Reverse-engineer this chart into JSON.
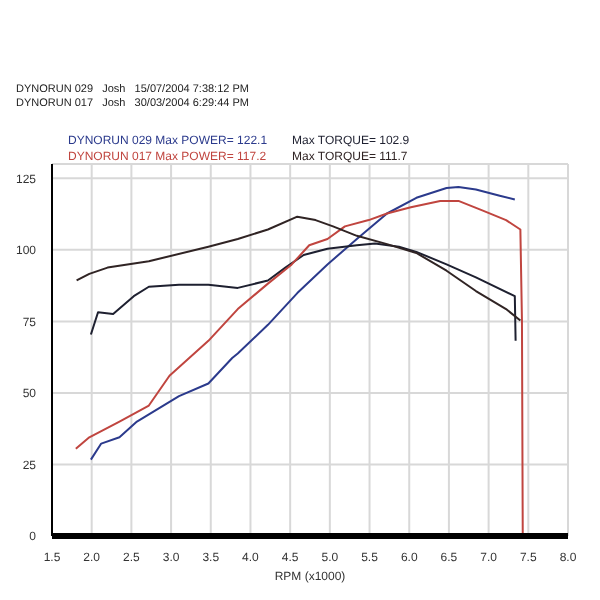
{
  "chart_data": {
    "type": "line",
    "xlabel": "RPM (x1000)",
    "annotations": [
      "DYNORUN 029   Josh   15/07/2004 7:38:12 PM",
      "DYNORUN 017   Josh   30/03/2004 6:29:44 PM"
    ],
    "xlim": [
      1.5,
      8.0
    ],
    "xticks": [
      {
        "value": 1.5,
        "label": "1.5"
      },
      {
        "value": 2,
        "label": "2.0"
      },
      {
        "value": 2.5,
        "label": "2.5"
      },
      {
        "value": 3,
        "label": "3.0"
      },
      {
        "value": 3.5,
        "label": "3.5"
      },
      {
        "value": 4,
        "label": "4.0"
      },
      {
        "value": 4.5,
        "label": "4.5"
      },
      {
        "value": 5,
        "label": "5.0"
      },
      {
        "value": 5.5,
        "label": "5.5"
      },
      {
        "value": 6,
        "label": "6.0"
      },
      {
        "value": 6.5,
        "label": "6.5"
      },
      {
        "value": 7,
        "label": "7.0"
      },
      {
        "value": 7.5,
        "label": "7.5"
      },
      {
        "value": 8,
        "label": "8.0"
      }
    ],
    "ylim": [
      0,
      130
    ],
    "yticks": [
      0,
      25,
      50,
      75,
      100,
      125
    ],
    "grid": true,
    "legend": "top left",
    "marker": "none",
    "line_style": "solid",
    "series": [
      {
        "name": "DYNORUN 029  Max POWER= 122.1",
        "color": "#2b3a8c",
        "x": [
          1.99,
          2.12,
          2.35,
          2.57,
          3.1,
          3.47,
          3.77,
          3.84,
          4.22,
          4.59,
          4.97,
          5.34,
          5.72,
          6.09,
          6.47,
          6.62,
          6.84,
          7.14,
          7.33
        ],
        "values": [
          26.7,
          32.3,
          34.5,
          40.0,
          48.9,
          53.3,
          62.2,
          63.8,
          73.8,
          84.9,
          94.9,
          103.8,
          112.7,
          118.2,
          121.6,
          122.0,
          121.1,
          118.9,
          117.6
        ]
      },
      {
        "name": "Max TORQUE= 102.9",
        "color": "#1e2030",
        "x": [
          1.99,
          2.08,
          2.27,
          2.53,
          2.72,
          3.1,
          3.47,
          3.84,
          4.22,
          4.44,
          4.67,
          4.97,
          5.34,
          5.57,
          5.87,
          6.09,
          6.47,
          6.84,
          7.33,
          7.34
        ],
        "values": [
          70.4,
          78.2,
          77.6,
          83.8,
          87.1,
          87.8,
          87.8,
          86.7,
          89.3,
          93.8,
          98.2,
          100.4,
          101.6,
          102.2,
          101.1,
          99.3,
          94.9,
          90.4,
          83.8,
          68.2
        ]
      },
      {
        "name": "DYNORUN 017  Max POWER= 117.2",
        "color": "#c0453f",
        "x": [
          1.8,
          1.97,
          2.35,
          2.72,
          2.98,
          3.47,
          3.84,
          4.22,
          4.52,
          4.74,
          4.97,
          5.19,
          5.49,
          5.72,
          6.02,
          6.39,
          6.62,
          6.92,
          7.22,
          7.4,
          7.42,
          7.43
        ],
        "values": [
          30.5,
          34.5,
          40.0,
          45.6,
          56.0,
          68.2,
          79.3,
          88.2,
          94.9,
          101.6,
          103.8,
          108.2,
          110.4,
          112.7,
          114.9,
          117.1,
          117.1,
          113.8,
          110.4,
          107.1,
          75.3,
          0
        ]
      },
      {
        "name": "Max TORQUE= 111.7",
        "color": "#302424",
        "x": [
          1.81,
          1.97,
          2.2,
          2.72,
          3.47,
          3.84,
          4.22,
          4.59,
          4.82,
          5.04,
          5.34,
          5.72,
          6.09,
          6.47,
          6.84,
          7.22,
          7.4
        ],
        "values": [
          89.3,
          91.6,
          93.8,
          96.0,
          101.1,
          103.8,
          107.1,
          111.6,
          110.4,
          108.2,
          104.9,
          102.0,
          98.9,
          92.7,
          85.6,
          79.3,
          75.3
        ]
      }
    ]
  }
}
